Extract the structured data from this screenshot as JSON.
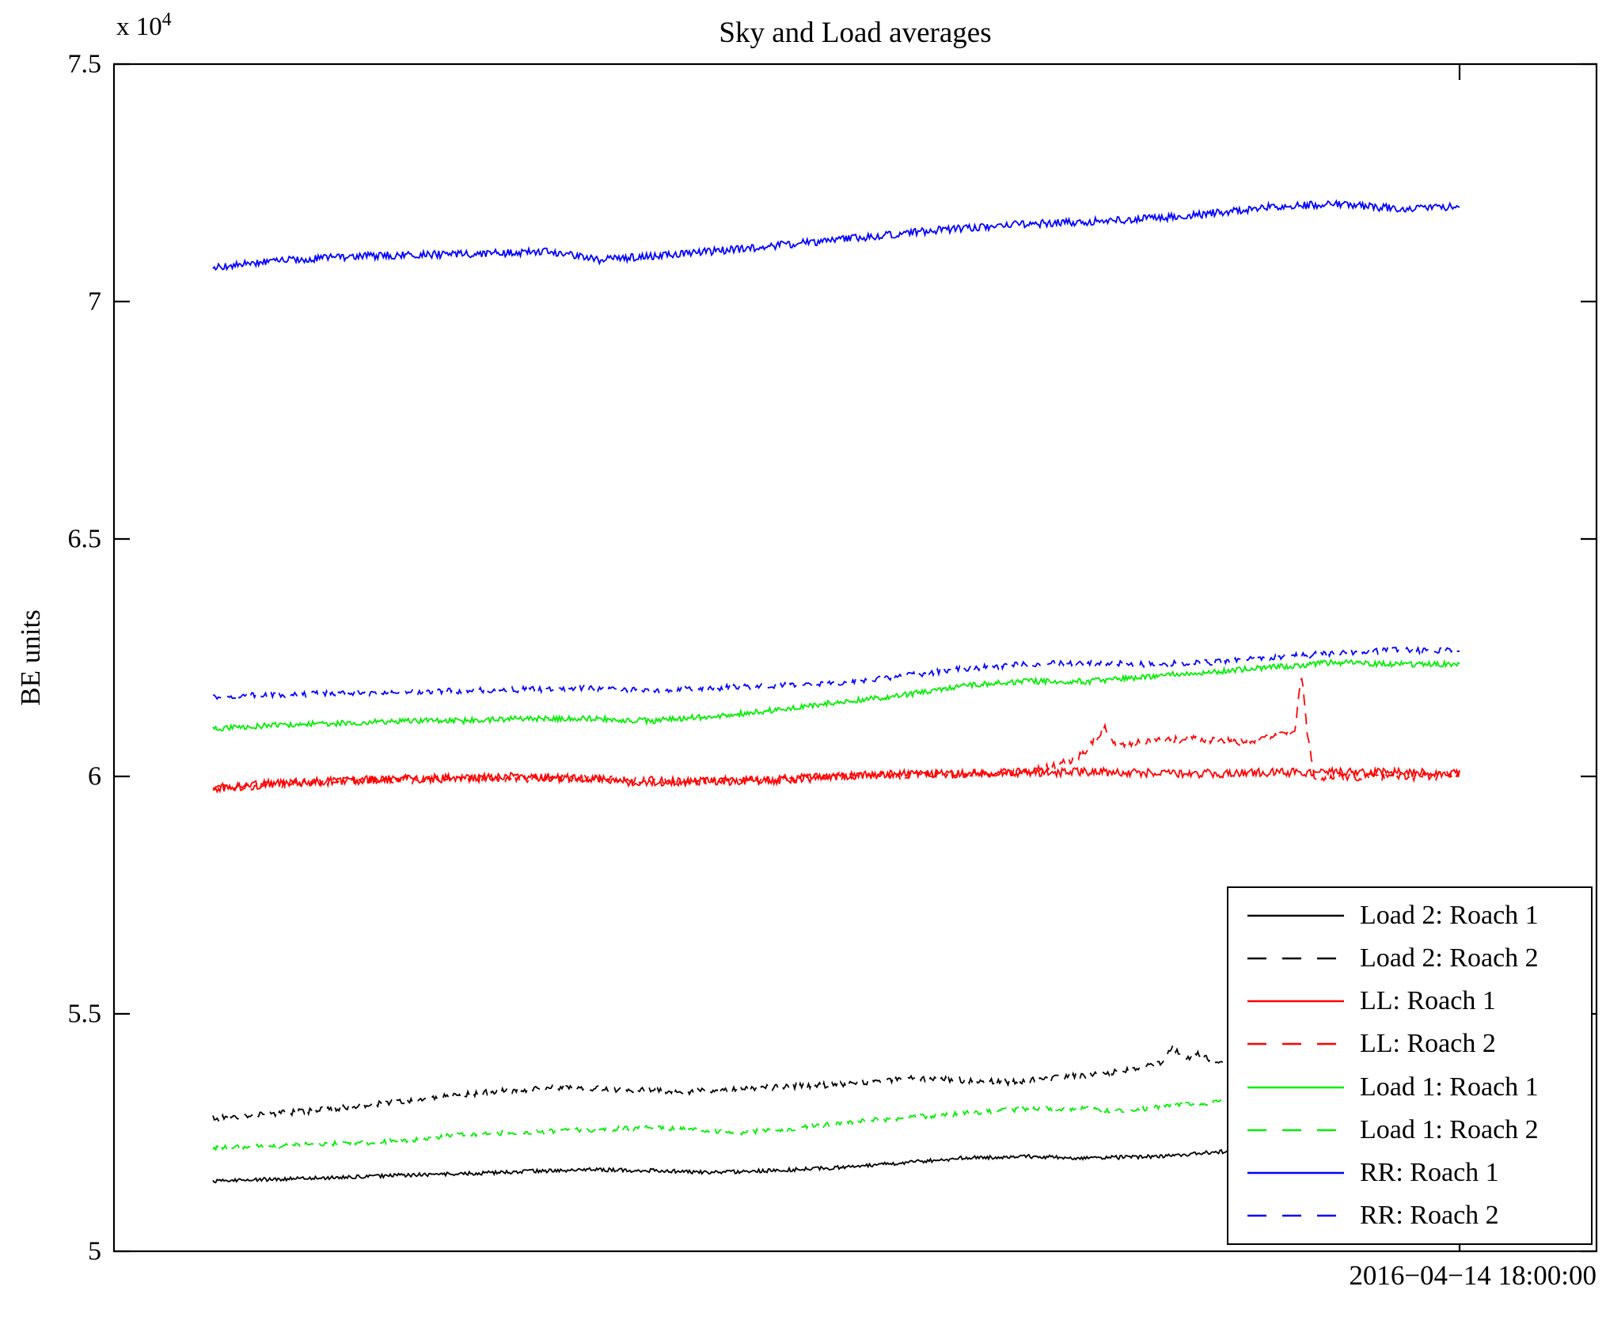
{
  "chart_data": {
    "type": "line",
    "title": "Sky and Load averages",
    "ylabel": "BE units",
    "y_offset_label": "x 10",
    "y_offset_exponent": "4",
    "y_values_note": "y values are in units of 1e4 BE units",
    "ylim": [
      5,
      7.5
    ],
    "yticks": [
      5,
      5.5,
      6,
      6.5,
      7,
      7.5
    ],
    "ytick_labels": [
      "5",
      "5.5",
      "6",
      "6.5",
      "7",
      "7.5"
    ],
    "grid": false,
    "legend_position": "lower right",
    "xtick": {
      "x": 1.0,
      "label": "2016−04−14 18:00:00"
    },
    "series": [
      {
        "name": "Load 2: Roach 1",
        "color": "#000000",
        "style": "solid",
        "legend_dash": "none",
        "noise": 0.004,
        "x_end": 0.82,
        "anchors": [
          [
            0,
            5.148
          ],
          [
            0.05,
            5.152
          ],
          [
            0.1,
            5.155
          ],
          [
            0.15,
            5.16
          ],
          [
            0.2,
            5.163
          ],
          [
            0.25,
            5.168
          ],
          [
            0.3,
            5.172
          ],
          [
            0.35,
            5.17
          ],
          [
            0.4,
            5.166
          ],
          [
            0.45,
            5.17
          ],
          [
            0.5,
            5.176
          ],
          [
            0.55,
            5.186
          ],
          [
            0.6,
            5.196
          ],
          [
            0.65,
            5.2
          ],
          [
            0.7,
            5.196
          ],
          [
            0.75,
            5.199
          ],
          [
            0.78,
            5.204
          ],
          [
            0.82,
            5.212
          ]
        ]
      },
      {
        "name": "Load 2: Roach 2",
        "color": "#000000",
        "style": "dashed",
        "legend_dash": "24 20",
        "noise": 0.006,
        "x_end": 0.81,
        "anchors": [
          [
            0,
            5.28
          ],
          [
            0.08,
            5.296
          ],
          [
            0.15,
            5.315
          ],
          [
            0.22,
            5.335
          ],
          [
            0.28,
            5.345
          ],
          [
            0.33,
            5.34
          ],
          [
            0.38,
            5.336
          ],
          [
            0.44,
            5.345
          ],
          [
            0.5,
            5.35
          ],
          [
            0.56,
            5.365
          ],
          [
            0.6,
            5.36
          ],
          [
            0.64,
            5.356
          ],
          [
            0.68,
            5.366
          ],
          [
            0.72,
            5.376
          ],
          [
            0.745,
            5.385
          ],
          [
            0.762,
            5.4
          ],
          [
            0.77,
            5.432
          ],
          [
            0.778,
            5.405
          ],
          [
            0.79,
            5.415
          ],
          [
            0.8,
            5.405
          ],
          [
            0.81,
            5.398
          ]
        ]
      },
      {
        "name": "LL: Roach 1",
        "color": "#ff0000",
        "style": "solid",
        "legend_dash": "none",
        "noise": 0.009,
        "x_end": 1.0,
        "anchors": [
          [
            0,
            5.975
          ],
          [
            0.05,
            5.985
          ],
          [
            0.1,
            5.99
          ],
          [
            0.15,
            5.995
          ],
          [
            0.2,
            5.996
          ],
          [
            0.25,
            6.0
          ],
          [
            0.3,
            5.995
          ],
          [
            0.35,
            5.986
          ],
          [
            0.4,
            5.99
          ],
          [
            0.45,
            5.992
          ],
          [
            0.5,
            6.0
          ],
          [
            0.55,
            6.005
          ],
          [
            0.6,
            6.006
          ],
          [
            0.7,
            6.01
          ],
          [
            0.8,
            6.006
          ],
          [
            0.9,
            6.01
          ],
          [
            1,
            6.006
          ]
        ]
      },
      {
        "name": "LL: Roach 2",
        "color": "#ff0000",
        "style": "dashed",
        "legend_dash": "24 20",
        "noise": 0.008,
        "x_end": 1.0,
        "anchors": [
          [
            0,
            5.975
          ],
          [
            0.1,
            5.99
          ],
          [
            0.2,
            5.996
          ],
          [
            0.3,
            5.995
          ],
          [
            0.4,
            5.99
          ],
          [
            0.5,
            6.0
          ],
          [
            0.6,
            6.005
          ],
          [
            0.65,
            6.01
          ],
          [
            0.68,
            6.025
          ],
          [
            0.7,
            6.05
          ],
          [
            0.715,
            6.105
          ],
          [
            0.725,
            6.065
          ],
          [
            0.74,
            6.07
          ],
          [
            0.76,
            6.075
          ],
          [
            0.78,
            6.08
          ],
          [
            0.8,
            6.078
          ],
          [
            0.82,
            6.072
          ],
          [
            0.84,
            6.08
          ],
          [
            0.855,
            6.085
          ],
          [
            0.868,
            6.095
          ],
          [
            0.873,
            6.22
          ],
          [
            0.878,
            6.09
          ],
          [
            0.884,
            5.99
          ],
          [
            0.9,
            6.0
          ],
          [
            0.94,
            5.998
          ],
          [
            1,
            6.002
          ]
        ]
      },
      {
        "name": "Load 1: Roach 1",
        "color": "#00ee00",
        "style": "solid",
        "legend_dash": "none",
        "noise": 0.006,
        "x_end": 1.0,
        "anchors": [
          [
            0,
            6.1
          ],
          [
            0.05,
            6.108
          ],
          [
            0.1,
            6.112
          ],
          [
            0.15,
            6.117
          ],
          [
            0.2,
            6.117
          ],
          [
            0.25,
            6.122
          ],
          [
            0.3,
            6.122
          ],
          [
            0.35,
            6.117
          ],
          [
            0.4,
            6.126
          ],
          [
            0.45,
            6.14
          ],
          [
            0.5,
            6.156
          ],
          [
            0.55,
            6.17
          ],
          [
            0.6,
            6.19
          ],
          [
            0.65,
            6.2
          ],
          [
            0.7,
            6.2
          ],
          [
            0.75,
            6.21
          ],
          [
            0.8,
            6.22
          ],
          [
            0.85,
            6.23
          ],
          [
            0.9,
            6.24
          ],
          [
            0.95,
            6.236
          ],
          [
            1,
            6.236
          ]
        ]
      },
      {
        "name": "Load 1: Roach 2",
        "color": "#00ee00",
        "style": "dashed",
        "legend_dash": "24 20",
        "noise": 0.005,
        "x_end": 0.815,
        "anchors": [
          [
            0,
            5.218
          ],
          [
            0.05,
            5.222
          ],
          [
            0.1,
            5.227
          ],
          [
            0.15,
            5.232
          ],
          [
            0.2,
            5.246
          ],
          [
            0.25,
            5.251
          ],
          [
            0.3,
            5.256
          ],
          [
            0.35,
            5.26
          ],
          [
            0.38,
            5.256
          ],
          [
            0.42,
            5.25
          ],
          [
            0.46,
            5.256
          ],
          [
            0.5,
            5.27
          ],
          [
            0.55,
            5.28
          ],
          [
            0.6,
            5.29
          ],
          [
            0.65,
            5.3
          ],
          [
            0.7,
            5.3
          ],
          [
            0.72,
            5.295
          ],
          [
            0.75,
            5.301
          ],
          [
            0.78,
            5.308
          ],
          [
            0.815,
            5.315
          ]
        ]
      },
      {
        "name": "RR: Roach 1",
        "color": "#0000ff",
        "style": "solid",
        "legend_dash": "none",
        "noise": 0.008,
        "x_end": 1.0,
        "anchors": [
          [
            0,
            7.07
          ],
          [
            0.05,
            7.086
          ],
          [
            0.12,
            7.096
          ],
          [
            0.2,
            7.1
          ],
          [
            0.27,
            7.105
          ],
          [
            0.31,
            7.087
          ],
          [
            0.35,
            7.096
          ],
          [
            0.42,
            7.11
          ],
          [
            0.5,
            7.13
          ],
          [
            0.58,
            7.15
          ],
          [
            0.65,
            7.163
          ],
          [
            0.72,
            7.17
          ],
          [
            0.78,
            7.18
          ],
          [
            0.85,
            7.2
          ],
          [
            0.9,
            7.205
          ],
          [
            0.95,
            7.196
          ],
          [
            1,
            7.2
          ]
        ]
      },
      {
        "name": "RR: Roach 2",
        "color": "#0000ff",
        "style": "dashed",
        "legend_dash": "24 20",
        "noise": 0.006,
        "x_end": 1.0,
        "anchors": [
          [
            0,
            6.168
          ],
          [
            0.1,
            6.176
          ],
          [
            0.2,
            6.18
          ],
          [
            0.3,
            6.186
          ],
          [
            0.35,
            6.18
          ],
          [
            0.4,
            6.186
          ],
          [
            0.5,
            6.196
          ],
          [
            0.55,
            6.21
          ],
          [
            0.6,
            6.226
          ],
          [
            0.65,
            6.236
          ],
          [
            0.7,
            6.24
          ],
          [
            0.75,
            6.236
          ],
          [
            0.8,
            6.24
          ],
          [
            0.85,
            6.25
          ],
          [
            0.9,
            6.26
          ],
          [
            0.95,
            6.266
          ],
          [
            1,
            6.266
          ]
        ]
      }
    ]
  }
}
